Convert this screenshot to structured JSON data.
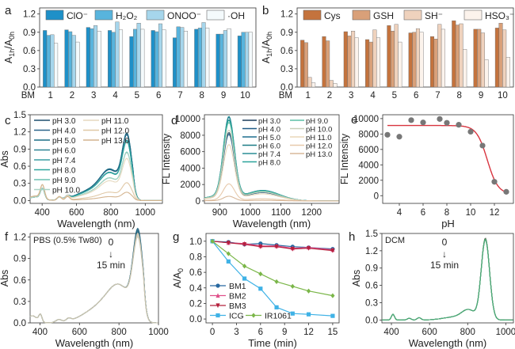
{
  "chart_data": [
    {
      "panel": "a",
      "type": "bar",
      "xlabel_prefix": "BM",
      "categories": [
        "1",
        "2",
        "3",
        "4",
        "5",
        "6",
        "7",
        "8",
        "9",
        "10"
      ],
      "ylabel": "A1h/A0h",
      "ylim": [
        0,
        1.3
      ],
      "yticks": [
        "0.0",
        "0.3",
        "0.6",
        "0.9",
        "1.2"
      ],
      "ytick_values": [
        0,
        0.3,
        0.6,
        0.9,
        1.2
      ],
      "legend": "top",
      "series": [
        {
          "name": "ClO⁻",
          "color": "#1e90c8",
          "values": [
            0.93,
            0.94,
            0.98,
            0.93,
            0.83,
            0.93,
            0.81,
            0.95,
            0.87,
            0.84
          ]
        },
        {
          "name": "H₂O₂",
          "color": "#58b4dd",
          "values": [
            0.85,
            0.91,
            0.96,
            0.9,
            0.95,
            0.91,
            0.99,
            0.97,
            0.87,
            0.9
          ]
        },
        {
          "name": "ONOO⁻",
          "color": "#a6d6ec",
          "values": [
            0.86,
            0.85,
            1.01,
            1.07,
            1.05,
            1.04,
            0.98,
            1.06,
            0.93,
            0.9
          ]
        },
        {
          "name": "·OH",
          "color": "#f4fafc",
          "values": [
            0.72,
            0.74,
            0.92,
            0.94,
            0.95,
            0.94,
            0.92,
            0.97,
            0.96,
            0.9
          ]
        }
      ]
    },
    {
      "panel": "b",
      "type": "bar",
      "xlabel_prefix": "BM",
      "categories": [
        "1",
        "2",
        "3",
        "4",
        "5",
        "6",
        "7",
        "8",
        "9",
        "10"
      ],
      "ylabel": "A1h/A0h",
      "ylim": [
        0,
        1.3
      ],
      "yticks": [
        "0.0",
        "0.3",
        "0.6",
        "0.9",
        "1.2"
      ],
      "ytick_values": [
        0,
        0.3,
        0.6,
        0.9,
        1.2
      ],
      "legend": "top",
      "series": [
        {
          "name": "Cys",
          "color": "#c4733d",
          "values": [
            0.77,
            0.83,
            0.91,
            0.78,
            1.01,
            0.89,
            0.83,
            1.09,
            0.95,
            0.97
          ]
        },
        {
          "name": "GSH",
          "color": "#d9a079",
          "values": [
            0.73,
            0.76,
            0.84,
            0.74,
            0.92,
            0.9,
            0.79,
            1.02,
            0.95,
            1.05
          ]
        },
        {
          "name": "SH⁻",
          "color": "#efd2bd",
          "values": [
            0.16,
            0.11,
            0.92,
            0.94,
            1.03,
            0.96,
            1.03,
            1.04,
            0.89,
            0.94
          ]
        },
        {
          "name": "HSO₃⁻",
          "color": "#fcf3ec",
          "values": [
            0.07,
            0.06,
            0.81,
            0.81,
            0.74,
            0.9,
            0.95,
            0.62,
            0.45,
            0.49
          ]
        }
      ]
    },
    {
      "panel": "c",
      "type": "line",
      "xlabel": "Wavelength (nm)",
      "ylabel": "Abs",
      "xlim": [
        330,
        1100
      ],
      "ylim": [
        -0.05,
        1.5
      ],
      "xticks": [
        400,
        600,
        800,
        1000
      ],
      "yticks": [
        0.0,
        0.3,
        0.6,
        0.9,
        1.2,
        1.5
      ],
      "ytick_labels": [
        "0.0",
        "0.3",
        "0.6",
        "0.9",
        "1.2",
        "1.5"
      ],
      "legend": "top-left",
      "series": [
        {
          "name": "pH 3.0",
          "color": "#1f4e6e",
          "peak": 1.05
        },
        {
          "name": "pH 4.0",
          "color": "#2a6489",
          "peak": 1.03
        },
        {
          "name": "pH 5.0",
          "color": "#1c6f86",
          "peak": 1.06
        },
        {
          "name": "pH 6.0",
          "color": "#2d8595",
          "peak": 0.95
        },
        {
          "name": "pH 7.4",
          "color": "#3c9ea4",
          "peak": 0.94
        },
        {
          "name": "pH 8.0",
          "color": "#2fa79e",
          "peak": 0.93
        },
        {
          "name": "pH 9.0",
          "color": "#6cc0b2",
          "peak": 0.76
        },
        {
          "name": "pH 10.0",
          "color": "#a9d3c4",
          "peak": 0.75
        },
        {
          "name": "pH 11.0",
          "color": "#e6d9bf",
          "peak": 0.66
        },
        {
          "name": "pH 12.0",
          "color": "#e0c8a6",
          "peak": 0.28
        },
        {
          "name": "pH 13.0",
          "color": "#d4b48f",
          "peak": 0.13
        }
      ]
    },
    {
      "panel": "d",
      "type": "line",
      "xlabel": "Wavelength (nm)",
      "ylabel": "FL Intensity",
      "xlim": [
        850,
        1290
      ],
      "ylim": [
        -300,
        10500
      ],
      "xticks": [
        900,
        1000,
        1100,
        1200
      ],
      "yticks": [
        0,
        2000,
        4000,
        6000,
        8000,
        10000
      ],
      "legend": "top-right",
      "series": [
        {
          "name": "pH 3.0",
          "color": "#1c3c5a",
          "peak": 8000
        },
        {
          "name": "pH 4.0",
          "color": "#1f5a85",
          "peak": 7800
        },
        {
          "name": "pH 5.0",
          "color": "#1f6e8e",
          "peak": 9800
        },
        {
          "name": "pH 6.0",
          "color": "#1b7c86",
          "peak": 9500
        },
        {
          "name": "pH 7.4",
          "color": "#2a8e95",
          "peak": 9900
        },
        {
          "name": "pH 8.0",
          "color": "#2aa39a",
          "peak": 9450
        },
        {
          "name": "pH 9.0",
          "color": "#5cbfa6",
          "peak": 9200
        },
        {
          "name": "pH 10.0",
          "color": "#c9cfb9",
          "peak": 8300
        },
        {
          "name": "pH 11.0",
          "color": "#ead7b8",
          "peak": 6600
        },
        {
          "name": "pH 12.0",
          "color": "#e7c9ab",
          "peak": 2000
        },
        {
          "name": "pH 13.0",
          "color": "#d8b89a",
          "peak": 550
        }
      ]
    },
    {
      "panel": "e",
      "type": "scatter",
      "xlabel": "pH",
      "ylabel": "FL Intensity",
      "xlim": [
        2.6,
        13.6
      ],
      "ylim": [
        -1000,
        10500
      ],
      "xticks": [
        4,
        6,
        8,
        10,
        12
      ],
      "yticks": [
        0,
        2000,
        4000,
        6000,
        8000,
        10000
      ],
      "points": {
        "x": [
          3,
          4,
          5,
          6,
          7.4,
          8,
          9,
          10,
          11,
          12,
          13
        ],
        "y": [
          7900,
          7650,
          9800,
          9500,
          9950,
          9450,
          9200,
          8300,
          6500,
          1800,
          500
        ]
      },
      "fit": {
        "name": "sigmoid fit",
        "color": "#d8343f",
        "top": 9100,
        "bottom": 200,
        "x50": 11.4,
        "slope": 0.45
      },
      "point_color": "#777777"
    },
    {
      "panel": "f",
      "type": "line",
      "xlabel": "Wavelength (nm)",
      "ylabel": "Abs",
      "xlim": [
        350,
        1000
      ],
      "ylim": [
        0,
        1.25
      ],
      "xticks": [
        400,
        600,
        800,
        1000
      ],
      "yticks": [
        0.0,
        0.3,
        0.6,
        0.9,
        1.2
      ],
      "ytick_labels": [
        "0.0",
        "0.3",
        "0.6",
        "0.9",
        "1.2"
      ],
      "annotation": "PBS (0.5% Tw80)",
      "time_label_start": "0",
      "time_label_end": "15 min",
      "arrow": "↓",
      "series": [
        {
          "name": "0 min",
          "color": "#1b5f7a",
          "peak": 1.17
        },
        {
          "name": "15 min",
          "color": "#c9c3ae",
          "peak": 1.05
        }
      ]
    },
    {
      "panel": "g",
      "type": "line",
      "xlabel": "Time (min)",
      "ylabel": "A/A0",
      "xlim": [
        -0.8,
        15.8
      ],
      "ylim": [
        -0.05,
        1.1
      ],
      "xticks": [
        0,
        3,
        6,
        9,
        12,
        15
      ],
      "yticks": [
        0.0,
        0.2,
        0.4,
        0.6,
        0.8,
        1.0
      ],
      "ytick_labels": [
        "0.0",
        "0.2",
        "0.4",
        "0.6",
        "0.8",
        "1.0"
      ],
      "legend": "bottom-left",
      "x": [
        0,
        2,
        4,
        6,
        8,
        10,
        12,
        15
      ],
      "series": [
        {
          "name": "BM1",
          "color": "#2868a0",
          "marker": "circle",
          "values": [
            1.0,
            0.99,
            0.96,
            0.97,
            0.95,
            0.93,
            0.92,
            0.9
          ]
        },
        {
          "name": "BM2",
          "color": "#e0508a",
          "marker": "triangle-up",
          "values": [
            1.0,
            0.98,
            0.97,
            0.94,
            0.94,
            0.91,
            0.92,
            0.89
          ]
        },
        {
          "name": "BM3",
          "color": "#b5203c",
          "marker": "triangle-down",
          "values": [
            1.0,
            0.98,
            0.96,
            0.93,
            0.93,
            0.9,
            0.91,
            0.88
          ]
        },
        {
          "name": "ICG",
          "color": "#3fb2e6",
          "marker": "square",
          "values": [
            1.0,
            0.74,
            0.52,
            0.39,
            0.15,
            0.07,
            0.06,
            0.04
          ]
        },
        {
          "name": "IR1061",
          "color": "#7ab648",
          "marker": "diamond",
          "values": [
            1.0,
            0.84,
            0.68,
            0.58,
            0.48,
            0.42,
            0.36,
            0.3
          ]
        }
      ]
    },
    {
      "panel": "h",
      "type": "line",
      "xlabel": "Wavelength (nm)",
      "ylabel": "Abs",
      "xlim": [
        350,
        1040
      ],
      "ylim": [
        -0.05,
        1.5
      ],
      "xticks": [
        400,
        600,
        800,
        1000
      ],
      "yticks": [
        0.0,
        0.3,
        0.6,
        0.9,
        1.2,
        1.5
      ],
      "ytick_labels": [
        "0.0",
        "0.3",
        "0.6",
        "0.9",
        "1.2",
        "1.5"
      ],
      "annotation": "DCM",
      "time_label_start": "0",
      "time_label_end": "15 min",
      "arrow": "↓",
      "series": [
        {
          "name": "0 min",
          "color": "#5a6b52",
          "peak": 1.41
        },
        {
          "name": "15 min",
          "color": "#4caa78",
          "peak": 1.38
        }
      ]
    }
  ]
}
